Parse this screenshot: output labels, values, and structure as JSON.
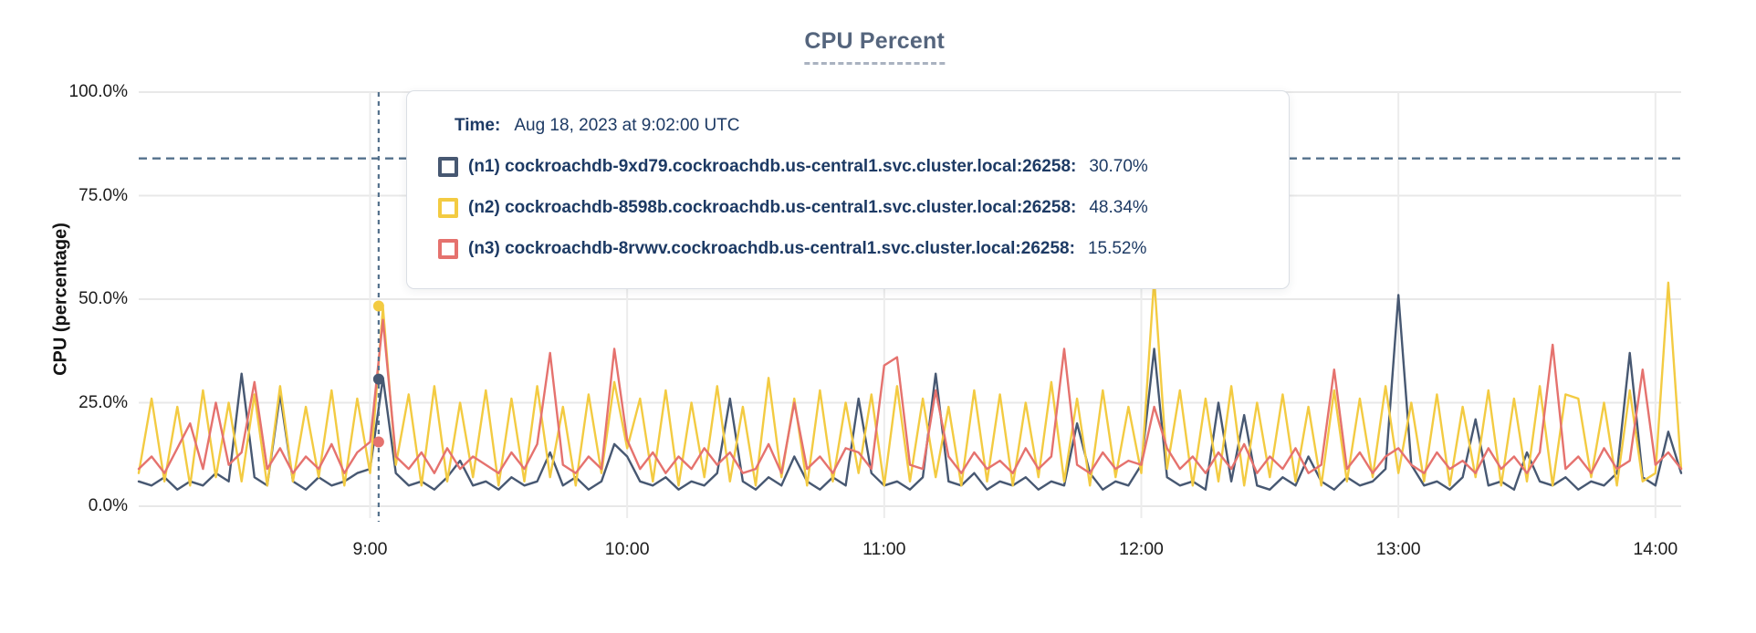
{
  "title": "CPU Percent",
  "y_axis_title": "CPU (percentage)",
  "tooltip": {
    "time_label": "Time:",
    "time_value": "Aug 18, 2023 at 9:02:00 UTC",
    "rows": [
      {
        "id": "n1",
        "label": "(n1) cockroachdb-9xd79.cockroachdb.us-central1.svc.cluster.local:26258:",
        "value": "30.70%",
        "color": "#475872"
      },
      {
        "id": "n2",
        "label": "(n2) cockroachdb-8598b.cockroachdb.us-central1.svc.cluster.local:26258:",
        "value": "48.34%",
        "color": "#F3CB42"
      },
      {
        "id": "n3",
        "label": "(n3) cockroachdb-8rvwv.cockroachdb.us-central1.svc.cluster.local:26258:",
        "value": "15.52%",
        "color": "#E5726E"
      }
    ]
  },
  "colors": {
    "n1_navy": "#475872",
    "n2_yellow": "#F3CB42",
    "n3_red": "#E5726E",
    "grid": "#E8E8E8",
    "dashed_guides": "#54718C",
    "title_text": "#55657D",
    "tooltip_text": "#1D3A64"
  },
  "chart_data": {
    "type": "line",
    "title": "CPU Percent",
    "xlabel": "",
    "ylabel": "CPU (percentage)",
    "ylim": [
      0,
      100
    ],
    "grid": true,
    "legend_position": "tooltip",
    "y_ticks": [
      "0.0%",
      "25.0%",
      "50.0%",
      "75.0%",
      "100.0%"
    ],
    "y_tick_values": [
      0,
      25,
      50,
      75,
      100
    ],
    "x_ticks": [
      "9:00",
      "10:00",
      "11:00",
      "12:00",
      "13:00",
      "14:00"
    ],
    "x_tick_minutes": [
      540,
      600,
      660,
      720,
      780,
      840
    ],
    "x_start_min": 486,
    "x_end_min": 846,
    "step_min": 3,
    "threshold_pct": 84,
    "hover": {
      "time_min": 542,
      "time_label": "Aug 18, 2023 at 9:02:00 UTC",
      "values": [
        30.7,
        48.34,
        15.52
      ]
    },
    "series": [
      {
        "id": "n1",
        "name": "(n1) cockroachdb-9xd79.cockroachdb.us-central1.svc.cluster.local:26258",
        "color": "#475872",
        "values": [
          6,
          5,
          7,
          4,
          6,
          5,
          8,
          6,
          32,
          7,
          5,
          27,
          6,
          4,
          7,
          5,
          6,
          8,
          9,
          31,
          8,
          5,
          6,
          4,
          7,
          11,
          5,
          6,
          4,
          7,
          5,
          6,
          13,
          5,
          7,
          4,
          6,
          15,
          12,
          6,
          5,
          7,
          4,
          6,
          5,
          8,
          26,
          6,
          4,
          7,
          5,
          12,
          6,
          4,
          7,
          5,
          26,
          8,
          5,
          6,
          4,
          7,
          32,
          6,
          5,
          8,
          4,
          6,
          5,
          7,
          4,
          6,
          5,
          20,
          8,
          4,
          6,
          5,
          10,
          38,
          7,
          5,
          6,
          4,
          25,
          6,
          22,
          5,
          4,
          7,
          5,
          12,
          6,
          4,
          7,
          5,
          6,
          9,
          51,
          10,
          5,
          6,
          4,
          7,
          21,
          5,
          6,
          4,
          13,
          6,
          5,
          7,
          4,
          6,
          5,
          8,
          37,
          7,
          5,
          18,
          8
        ]
      },
      {
        "id": "n2",
        "name": "(n2) cockroachdb-8598b.cockroachdb.us-central1.svc.cluster.local:26258",
        "color": "#F3CB42",
        "values": [
          8,
          26,
          6,
          24,
          5,
          28,
          7,
          25,
          6,
          27,
          5,
          29,
          6,
          24,
          7,
          28,
          5,
          26,
          8,
          48,
          10,
          27,
          5,
          29,
          6,
          25,
          7,
          28,
          5,
          26,
          6,
          29,
          7,
          24,
          5,
          27,
          8,
          30,
          14,
          26,
          6,
          28,
          5,
          25,
          7,
          29,
          6,
          24,
          5,
          31,
          7,
          26,
          5,
          28,
          6,
          25,
          8,
          27,
          5,
          29,
          6,
          26,
          7,
          24,
          5,
          28,
          6,
          27,
          5,
          25,
          7,
          30,
          6,
          26,
          5,
          28,
          7,
          24,
          8,
          55,
          9,
          28,
          5,
          26,
          6,
          29,
          5,
          25,
          7,
          27,
          6,
          24,
          5,
          28,
          6,
          26,
          7,
          29,
          8,
          25,
          6,
          27,
          5,
          24,
          7,
          28,
          5,
          26,
          6,
          29,
          5,
          27,
          26,
          7,
          25,
          5,
          28,
          6,
          8,
          54,
          9
        ]
      },
      {
        "id": "n3",
        "name": "(n3) cockroachdb-8rvwv.cockroachdb.us-central1.svc.cluster.local:26258",
        "color": "#E5726E",
        "values": [
          9,
          12,
          8,
          14,
          20,
          9,
          25,
          10,
          13,
          30,
          9,
          14,
          8,
          12,
          9,
          15,
          8,
          13,
          15.5,
          45,
          12,
          9,
          13,
          8,
          14,
          9,
          12,
          10,
          8,
          13,
          9,
          15,
          37,
          10,
          8,
          12,
          9,
          38,
          16,
          9,
          13,
          8,
          12,
          9,
          14,
          10,
          13,
          8,
          9,
          15,
          8,
          25,
          9,
          12,
          8,
          14,
          13,
          9,
          34,
          36,
          10,
          9,
          28,
          12,
          8,
          13,
          9,
          11,
          8,
          14,
          9,
          12,
          38,
          10,
          8,
          13,
          9,
          11,
          10,
          24,
          14,
          9,
          12,
          8,
          13,
          9,
          15,
          8,
          12,
          9,
          14,
          8,
          10,
          33,
          9,
          13,
          8,
          12,
          14,
          10,
          8,
          13,
          9,
          11,
          8,
          14,
          9,
          12,
          8,
          13,
          39,
          9,
          12,
          8,
          14,
          9,
          11,
          33,
          10,
          13,
          9
        ]
      }
    ]
  }
}
